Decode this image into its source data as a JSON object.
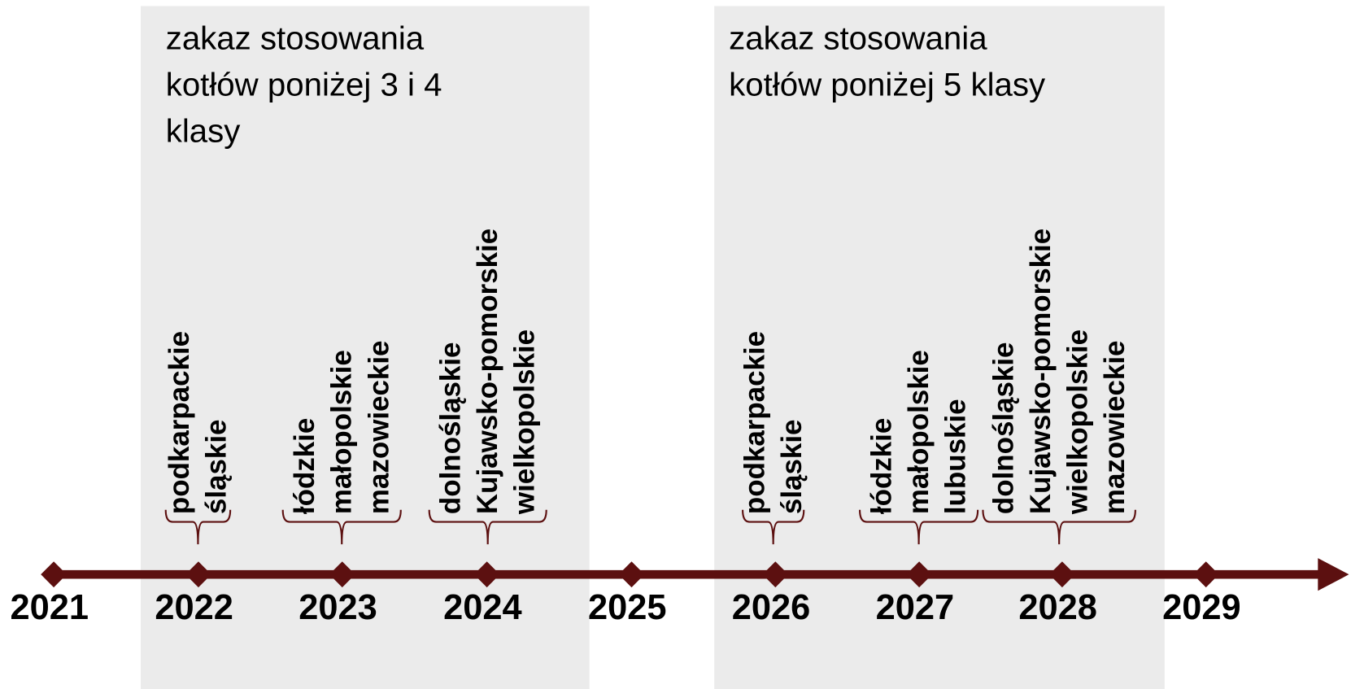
{
  "panels": [
    {
      "text_lines": [
        "zakaz stosowania",
        "kotłów poniżej 3 i 4",
        "klasy"
      ]
    },
    {
      "text_lines": [
        "zakaz stosowania",
        "kotłów poniżej 5 klasy"
      ]
    }
  ],
  "years": [
    "2021",
    "2022",
    "2023",
    "2024",
    "2025",
    "2026",
    "2027",
    "2028",
    "2029"
  ],
  "groups": [
    {
      "regions": [
        "podkarpackie",
        "śląskie"
      ]
    },
    {
      "regions": [
        "łódzkie",
        "małopolskie",
        "mazowieckie"
      ]
    },
    {
      "regions": [
        "dolnośląskie",
        "Kujawsko-pomorskie",
        "wielkopolskie"
      ]
    },
    {
      "regions": [
        "podkarpackie",
        "śląskie"
      ]
    },
    {
      "regions": [
        "łódzkie",
        "małopolskie",
        "lubuskie"
      ]
    },
    {
      "regions": [
        "dolnośląskie",
        "Kujawsko-pomorskie",
        "wielkopolskie",
        "mazowieckie"
      ]
    }
  ]
}
